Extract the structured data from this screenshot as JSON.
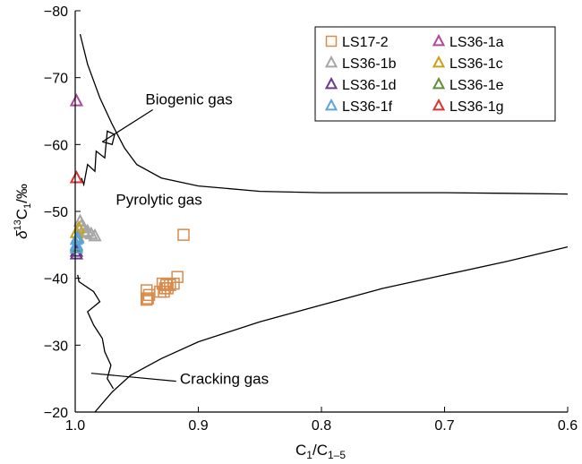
{
  "chart_data": {
    "type": "scatter",
    "xlabel_main": "C",
    "xlabel_sub1": "1",
    "xlabel_mid": "/C",
    "xlabel_sub2": "1–5",
    "ylabel_delta": "δ",
    "ylabel_sup": "13",
    "ylabel_c": "C",
    "ylabel_sub": "1",
    "ylabel_unit": "/‰",
    "xlim": [
      1.0,
      0.6
    ],
    "ylim": [
      -20,
      -80
    ],
    "x_ticks": [
      {
        "value": 1.0,
        "label": "1.0"
      },
      {
        "value": 0.9,
        "label": "0.9"
      },
      {
        "value": 0.8,
        "label": "0.8"
      },
      {
        "value": 0.7,
        "label": "0.7"
      },
      {
        "value": 0.6,
        "label": "0.6"
      }
    ],
    "y_ticks": [
      {
        "value": -80,
        "label": "−80"
      },
      {
        "value": -70,
        "label": "−70"
      },
      {
        "value": -60,
        "label": "−60"
      },
      {
        "value": -50,
        "label": "−50"
      },
      {
        "value": -40,
        "label": "−40"
      },
      {
        "value": -30,
        "label": "−30"
      },
      {
        "value": -20,
        "label": "−20"
      }
    ],
    "grid": false,
    "legend_position": "top-right",
    "annotations": [
      {
        "key": "biogenic",
        "text": "Biogenic gas",
        "x": 0.943,
        "y": -66.0,
        "line": [
          [
            0.937,
            -65.2
          ],
          [
            0.978,
            -60.4
          ]
        ]
      },
      {
        "key": "pyrolytic",
        "text": "Pyrolytic gas",
        "x": 0.967,
        "y": -51.0
      },
      {
        "key": "cracking",
        "text": "Cracking gas",
        "x": 0.915,
        "y": -24.2,
        "line": [
          [
            0.918,
            -24.6
          ],
          [
            0.987,
            -25.8
          ]
        ]
      }
    ],
    "boundaries": [
      {
        "name": "upper-boundary",
        "points": [
          [
            0.996,
            -76.5
          ],
          [
            0.99,
            -72
          ],
          [
            0.98,
            -67
          ],
          [
            0.97,
            -63
          ],
          [
            0.96,
            -59.5
          ],
          [
            0.95,
            -57
          ],
          [
            0.93,
            -55
          ],
          [
            0.9,
            -53.8
          ],
          [
            0.85,
            -53
          ],
          [
            0.8,
            -52.8
          ],
          [
            0.75,
            -52.8
          ],
          [
            0.7,
            -52.8
          ],
          [
            0.65,
            -52.7
          ],
          [
            0.6,
            -52.6
          ]
        ]
      },
      {
        "name": "upper-jagged",
        "points": [
          [
            0.995,
            -55
          ],
          [
            0.993,
            -54
          ],
          [
            0.99,
            -57
          ],
          [
            0.984,
            -56
          ],
          [
            0.983,
            -59
          ],
          [
            0.976,
            -58
          ],
          [
            0.974,
            -62
          ],
          [
            0.968,
            -61.5
          ],
          [
            0.97,
            -60
          ],
          [
            0.978,
            -60.4
          ]
        ]
      },
      {
        "name": "lower-boundary",
        "points": [
          [
            0.984,
            -20
          ],
          [
            0.97,
            -23
          ],
          [
            0.955,
            -25.5
          ],
          [
            0.93,
            -28
          ],
          [
            0.9,
            -30.5
          ],
          [
            0.85,
            -33.5
          ],
          [
            0.8,
            -36
          ],
          [
            0.75,
            -38.5
          ],
          [
            0.7,
            -40.5
          ],
          [
            0.65,
            -42.5
          ],
          [
            0.6,
            -44.7
          ]
        ]
      },
      {
        "name": "lower-jagged",
        "points": [
          [
            0.998,
            -40.5
          ],
          [
            0.997,
            -39.5
          ],
          [
            0.985,
            -38
          ],
          [
            0.98,
            -36.5
          ],
          [
            0.99,
            -35
          ],
          [
            0.985,
            -33
          ],
          [
            0.978,
            -31
          ],
          [
            0.976,
            -29
          ],
          [
            0.971,
            -27
          ],
          [
            0.974,
            -25
          ],
          [
            0.969,
            -23.5
          ]
        ]
      }
    ],
    "series": [
      {
        "name": "LS17-2",
        "marker": "square",
        "color": "#d98b4c",
        "points": [
          [
            0.912,
            -46.5
          ],
          [
            0.917,
            -40.2
          ],
          [
            0.92,
            -39.2
          ],
          [
            0.923,
            -39.0
          ],
          [
            0.925,
            -38.5
          ],
          [
            0.926,
            -39.0
          ],
          [
            0.927,
            -38.5
          ],
          [
            0.928,
            -38.0
          ],
          [
            0.929,
            -39.2
          ],
          [
            0.931,
            -38.0
          ],
          [
            0.94,
            -37.5
          ],
          [
            0.941,
            -37.0
          ],
          [
            0.942,
            -36.8
          ],
          [
            0.942,
            -38.2
          ]
        ]
      },
      {
        "name": "LS36-1a",
        "marker": "triangle",
        "color": "#b1489f",
        "points": [
          [
            0.999,
            -66.5
          ]
        ]
      },
      {
        "name": "LS36-1b",
        "marker": "triangle",
        "color": "#a6a6a6",
        "points": [
          [
            0.996,
            -48.5
          ],
          [
            0.993,
            -47.5
          ],
          [
            0.99,
            -47.0
          ],
          [
            0.987,
            -46.6
          ],
          [
            0.984,
            -46.3
          ],
          [
            0.995,
            -47.8
          ],
          [
            0.992,
            -46.8
          ],
          [
            0.998,
            -46.0
          ]
        ]
      },
      {
        "name": "LS36-1c",
        "marker": "triangle",
        "color": "#c9a21a",
        "points": [
          [
            0.997,
            -47.5
          ],
          [
            0.999,
            -46.8
          ],
          [
            0.998,
            -46.2
          ]
        ]
      },
      {
        "name": "LS36-1d",
        "marker": "triangle",
        "color": "#6a3b8c",
        "points": [
          [
            0.999,
            -44.0
          ],
          [
            0.999,
            -43.6
          ]
        ]
      },
      {
        "name": "LS36-1e",
        "marker": "triangle",
        "color": "#5f8f3a",
        "points": [
          [
            0.999,
            -44.8
          ]
        ]
      },
      {
        "name": "LS36-1f",
        "marker": "triangle",
        "color": "#5aa6dc",
        "points": [
          [
            0.999,
            -45.0
          ],
          [
            0.999,
            -45.8
          ],
          [
            0.999,
            -44.5
          ],
          [
            0.998,
            -46.0
          ]
        ]
      },
      {
        "name": "LS36-1g",
        "marker": "triangle",
        "color": "#e03131",
        "points": [
          [
            0.999,
            -55.0
          ]
        ]
      }
    ]
  }
}
